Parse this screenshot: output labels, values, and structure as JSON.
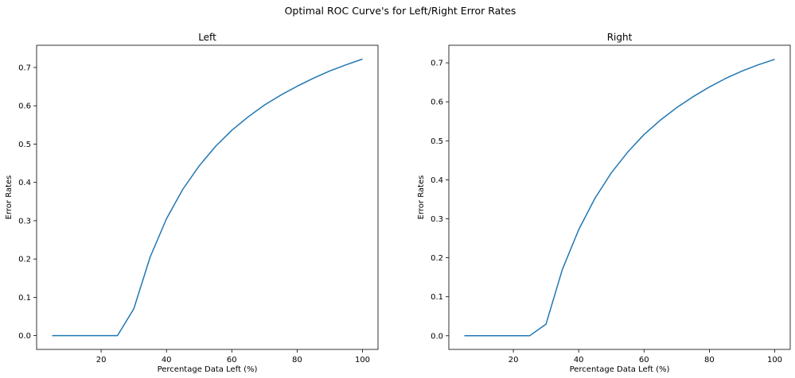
{
  "figure": {
    "suptitle": "Optimal ROC Curve's for Left/Right Error Rates"
  },
  "colors": {
    "line": "#1f77b4",
    "axes": "#000000",
    "background": "#ffffff"
  },
  "chart_data": [
    {
      "type": "line",
      "title": "Left",
      "xlabel": "Percentage Data Left (%)",
      "ylabel": "Error Rates",
      "xlim": [
        0.25,
        104.75
      ],
      "ylim": [
        -0.036,
        0.758
      ],
      "xticks": [
        20,
        40,
        60,
        80,
        100
      ],
      "yticks": [
        0.0,
        0.1,
        0.2,
        0.3,
        0.4,
        0.5,
        0.6,
        0.7
      ],
      "grid": false,
      "x": [
        5,
        10,
        15,
        20,
        25,
        30,
        35,
        40,
        45,
        50,
        55,
        60,
        65,
        70,
        75,
        80,
        85,
        90,
        95,
        100
      ],
      "series": [
        {
          "values": [
            0.0,
            0.0,
            0.0,
            0.0,
            0.0,
            0.07,
            0.205,
            0.305,
            0.382,
            0.443,
            0.494,
            0.536,
            0.571,
            0.602,
            0.628,
            0.651,
            0.672,
            0.691,
            0.707,
            0.722
          ]
        }
      ]
    },
    {
      "type": "line",
      "title": "Right",
      "xlabel": "Percentage Data Left (%)",
      "ylabel": "Error Rates",
      "xlim": [
        0.25,
        104.75
      ],
      "ylim": [
        -0.035,
        0.745
      ],
      "xticks": [
        20,
        40,
        60,
        80,
        100
      ],
      "yticks": [
        0.0,
        0.1,
        0.2,
        0.3,
        0.4,
        0.5,
        0.6,
        0.7
      ],
      "grid": false,
      "x": [
        5,
        10,
        15,
        20,
        25,
        30,
        35,
        40,
        45,
        50,
        55,
        60,
        65,
        70,
        75,
        80,
        85,
        90,
        95,
        100
      ],
      "series": [
        {
          "values": [
            0.0,
            0.0,
            0.0,
            0.0,
            0.0,
            0.03,
            0.17,
            0.272,
            0.353,
            0.418,
            0.471,
            0.516,
            0.553,
            0.585,
            0.613,
            0.638,
            0.66,
            0.679,
            0.695,
            0.709
          ]
        }
      ]
    }
  ]
}
